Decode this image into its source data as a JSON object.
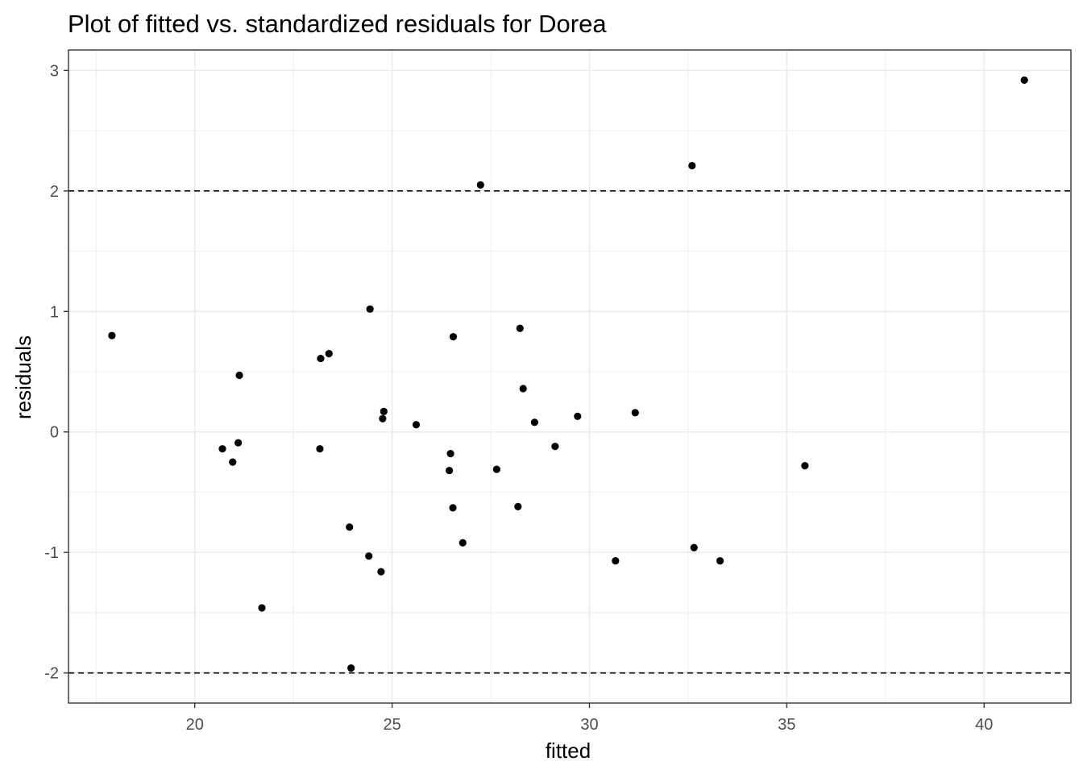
{
  "chart_data": {
    "type": "scatter",
    "title": "Plot of fitted vs. standardized residuals for Dorea",
    "xlabel": "fitted",
    "ylabel": "residuals",
    "xlim": [
      16.8,
      42.2
    ],
    "ylim": [
      -2.25,
      3.17
    ],
    "x_ticks": [
      20,
      25,
      30,
      35,
      40
    ],
    "y_ticks": [
      -2,
      -1,
      0,
      1,
      2,
      3
    ],
    "x_tick_labels": [
      "20",
      "25",
      "30",
      "35",
      "40"
    ],
    "y_tick_labels": [
      "-2",
      "-1",
      "0",
      "1",
      "2",
      "3"
    ],
    "reference_lines": [
      -2,
      2
    ],
    "grid": true,
    "colors": {
      "points": "#000000",
      "grid": "#ebebeb",
      "panel_border": "#333333",
      "reference_line": "#000000"
    },
    "points": [
      {
        "x": 17.9,
        "y": 0.8
      },
      {
        "x": 20.7,
        "y": -0.14
      },
      {
        "x": 20.96,
        "y": -0.25
      },
      {
        "x": 21.1,
        "y": -0.09
      },
      {
        "x": 21.13,
        "y": 0.47
      },
      {
        "x": 21.7,
        "y": -1.46
      },
      {
        "x": 23.17,
        "y": -0.14
      },
      {
        "x": 23.19,
        "y": 0.61
      },
      {
        "x": 23.4,
        "y": 0.65
      },
      {
        "x": 23.92,
        "y": -0.79
      },
      {
        "x": 23.96,
        "y": -1.96
      },
      {
        "x": 24.41,
        "y": -1.03
      },
      {
        "x": 24.44,
        "y": 1.02
      },
      {
        "x": 24.72,
        "y": -1.16
      },
      {
        "x": 24.76,
        "y": 0.11
      },
      {
        "x": 24.79,
        "y": 0.17
      },
      {
        "x": 25.61,
        "y": 0.06
      },
      {
        "x": 26.45,
        "y": -0.32
      },
      {
        "x": 26.48,
        "y": -0.18
      },
      {
        "x": 26.54,
        "y": -0.63
      },
      {
        "x": 26.55,
        "y": 0.79
      },
      {
        "x": 26.79,
        "y": -0.92
      },
      {
        "x": 27.24,
        "y": 2.05
      },
      {
        "x": 27.65,
        "y": -0.31
      },
      {
        "x": 28.19,
        "y": -0.62
      },
      {
        "x": 28.24,
        "y": 0.86
      },
      {
        "x": 28.32,
        "y": 0.36
      },
      {
        "x": 28.61,
        "y": 0.08
      },
      {
        "x": 29.13,
        "y": -0.12
      },
      {
        "x": 29.7,
        "y": 0.13
      },
      {
        "x": 30.66,
        "y": -1.07
      },
      {
        "x": 31.16,
        "y": 0.16
      },
      {
        "x": 32.6,
        "y": 2.21
      },
      {
        "x": 32.65,
        "y": -0.96
      },
      {
        "x": 33.31,
        "y": -1.07
      },
      {
        "x": 35.46,
        "y": -0.28
      },
      {
        "x": 41.02,
        "y": 2.92
      }
    ]
  }
}
